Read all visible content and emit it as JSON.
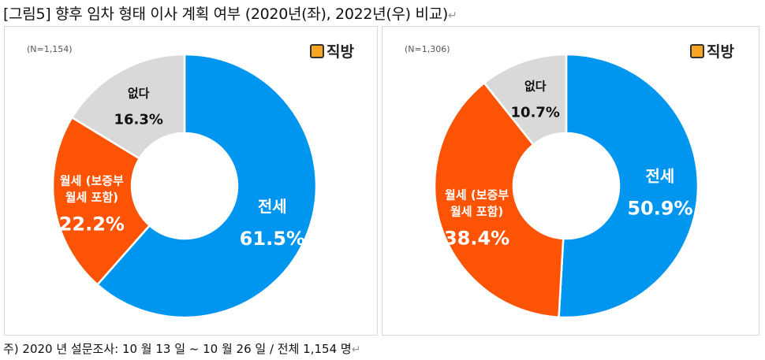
{
  "title": "[그림5] 향후 임차 형태 이사 계획 여부 (2020년(좌), 2022년(우) 비교)",
  "return_mark": "↵",
  "brand": "직방",
  "note": "주) 2020 년 설문조사: 10 월 13 일 ~ 10 월 26 일 / 전체 1,154 명",
  "colors": {
    "jeonse": "#0096f0",
    "wolse": "#fc5305",
    "none": "#d9d9d9"
  },
  "chart_data": [
    {
      "type": "pie",
      "variant": "donut",
      "title": "2020",
      "n_label": "(N=1,154)",
      "categories": [
        "전세",
        "월세 (보증부 월세 포함)",
        "없다"
      ],
      "label_lines": [
        [
          "전세"
        ],
        [
          "월세 (보증부",
          "월세 포함)"
        ],
        [
          "없다"
        ]
      ],
      "values": [
        61.5,
        22.2,
        16.3
      ],
      "value_labels": [
        "61.5%",
        "22.2%",
        "16.3%"
      ]
    },
    {
      "type": "pie",
      "variant": "donut",
      "title": "2022",
      "n_label": "(N=1,306)",
      "categories": [
        "전세",
        "월세 (보증부 월세 포함)",
        "없다"
      ],
      "label_lines": [
        [
          "전세"
        ],
        [
          "월세 (보증부",
          "월세 포함)"
        ],
        [
          "없다"
        ]
      ],
      "values": [
        50.9,
        38.4,
        10.7
      ],
      "value_labels": [
        "50.9%",
        "38.4%",
        "10.7%"
      ]
    }
  ]
}
